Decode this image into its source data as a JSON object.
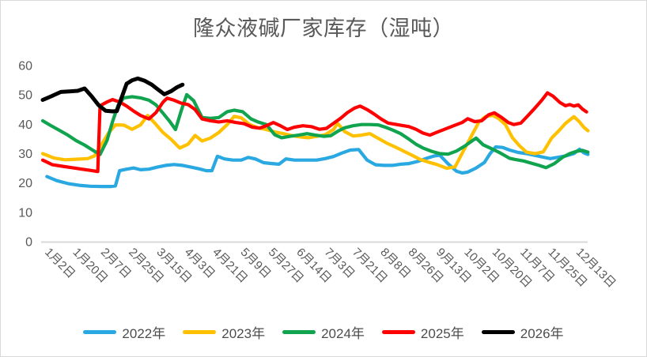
{
  "title": "隆众液碱厂家库存（湿吨）",
  "colors": {
    "background": "#ffffff",
    "border": "#d9d9d9",
    "axis_line": "#d8d8d8",
    "tick_text": "#595959",
    "legend_text": "#4d4d4d"
  },
  "chart_data": {
    "type": "line",
    "title": "隆众液碱厂家库存（湿吨）",
    "ylim": [
      0,
      60
    ],
    "y_ticks": [
      0,
      10,
      20,
      30,
      40,
      50,
      60
    ],
    "grid": false,
    "legend_position": "bottom",
    "x_note": "series x values are fractional positions on the category axis, 0 = first label, 19 = last label",
    "x_tick_labels": [
      "1月2日",
      "1月20日",
      "2月7日",
      "2月25日",
      "3月15日",
      "4月3日",
      "4月21日",
      "5月9日",
      "5月27日",
      "6月14日",
      "7月3日",
      "7月21日",
      "8月8日",
      "8月26日",
      "9月13日",
      "10月2日",
      "10月20日",
      "11月7日",
      "11月25日",
      "12月13日"
    ],
    "series": [
      {
        "name": "2022年",
        "color": "#29A8E1",
        "x": [
          0.15,
          0.5,
          0.9,
          1.3,
          1.7,
          2.1,
          2.45,
          2.6,
          2.75,
          3.0,
          3.25,
          3.5,
          3.8,
          4.1,
          4.4,
          4.7,
          5.0,
          5.3,
          5.6,
          5.85,
          6.05,
          6.25,
          6.5,
          6.8,
          7.1,
          7.35,
          7.6,
          7.9,
          8.2,
          8.45,
          8.7,
          9.0,
          9.4,
          9.8,
          10.1,
          10.4,
          10.7,
          11.0,
          11.3,
          11.6,
          11.9,
          12.2,
          12.5,
          12.8,
          13.1,
          13.4,
          13.7,
          14.0,
          14.2,
          14.5,
          14.8,
          15.0,
          15.2,
          15.5,
          15.8,
          16.0,
          16.2,
          16.45,
          16.7,
          17.0,
          17.3,
          17.6,
          17.9,
          18.15,
          18.4,
          18.7,
          19.0,
          19.2,
          19.35,
          19.5
        ],
        "y": [
          22.2,
          20.8,
          19.8,
          19.2,
          18.9,
          18.8,
          18.8,
          19.0,
          24.2,
          24.7,
          25.1,
          24.5,
          24.7,
          25.4,
          26.0,
          26.3,
          26.0,
          25.4,
          24.8,
          24.2,
          24.2,
          29.1,
          28.2,
          27.8,
          27.8,
          28.7,
          28.2,
          26.9,
          26.6,
          26.4,
          28.2,
          27.8,
          27.8,
          27.8,
          28.3,
          29.0,
          30.2,
          31.2,
          31.4,
          27.8,
          26.2,
          26.0,
          26.0,
          26.4,
          26.6,
          27.3,
          28.3,
          29.2,
          29.5,
          26.5,
          24.0,
          23.4,
          23.7,
          25.1,
          27.0,
          30.0,
          32.3,
          32.1,
          31.2,
          30.4,
          30.0,
          29.4,
          28.8,
          28.3,
          28.7,
          29.2,
          30.0,
          31.5,
          30.3,
          29.7
        ]
      },
      {
        "name": "2023年",
        "color": "#FFC000",
        "x": [
          0,
          0.4,
          0.8,
          1.2,
          1.6,
          1.85,
          2.1,
          2.35,
          2.6,
          2.9,
          3.2,
          3.5,
          3.75,
          4.0,
          4.3,
          4.6,
          4.9,
          5.2,
          5.45,
          5.7,
          6.0,
          6.3,
          6.6,
          6.85,
          7.1,
          7.4,
          7.7,
          8.0,
          8.3,
          8.6,
          8.9,
          9.2,
          9.5,
          9.8,
          10.1,
          10.4,
          10.55,
          10.8,
          11.1,
          11.4,
          11.7,
          12.0,
          12.3,
          12.6,
          12.9,
          13.2,
          13.5,
          13.8,
          14.1,
          14.45,
          14.75,
          15.05,
          15.35,
          15.6,
          15.85,
          16.1,
          16.3,
          16.55,
          16.8,
          17.05,
          17.3,
          17.6,
          17.9,
          18.2,
          18.45,
          18.7,
          19.0,
          19.2,
          19.35,
          19.5
        ],
        "y": [
          30.0,
          28.5,
          27.9,
          28.1,
          28.3,
          29.2,
          33.0,
          37.0,
          39.8,
          39.7,
          38.3,
          39.8,
          43.0,
          40.5,
          37.2,
          34.8,
          31.9,
          33.2,
          36.2,
          34.3,
          35.3,
          37.2,
          39.9,
          42.7,
          42.2,
          39.9,
          38.8,
          38.2,
          37.4,
          36.8,
          36.2,
          35.7,
          35.4,
          35.9,
          36.4,
          38.2,
          40.3,
          37.5,
          36.0,
          36.3,
          36.8,
          35.2,
          33.6,
          32.3,
          30.9,
          29.5,
          28.0,
          27.1,
          26.3,
          25.0,
          25.5,
          31.0,
          36.3,
          40.8,
          42.7,
          43.0,
          42.0,
          39.9,
          35.4,
          32.7,
          30.5,
          30.0,
          30.6,
          35.3,
          37.7,
          40.3,
          42.6,
          40.8,
          39.0,
          37.8
        ]
      },
      {
        "name": "2024年",
        "color": "#10A44F",
        "x": [
          0,
          0.3,
          0.6,
          0.9,
          1.2,
          1.5,
          1.8,
          2.05,
          2.3,
          2.5,
          2.7,
          2.9,
          3.2,
          3.5,
          3.8,
          4.05,
          4.3,
          4.55,
          4.75,
          4.95,
          5.15,
          5.4,
          5.7,
          6.0,
          6.3,
          6.6,
          6.85,
          7.15,
          7.45,
          7.7,
          8.0,
          8.3,
          8.55,
          8.85,
          9.15,
          9.45,
          9.75,
          10.05,
          10.3,
          10.55,
          10.8,
          11.1,
          11.4,
          11.7,
          12.0,
          12.25,
          12.5,
          12.8,
          13.1,
          13.35,
          13.6,
          13.9,
          14.2,
          14.5,
          14.8,
          15.1,
          15.35,
          15.5,
          15.75,
          16.05,
          16.35,
          16.7,
          16.9,
          17.2,
          17.45,
          17.75,
          18.0,
          18.3,
          18.6,
          18.85,
          19.1,
          19.3,
          19.5
        ],
        "y": [
          41.2,
          39.5,
          37.9,
          36.3,
          34.4,
          32.9,
          31.1,
          29.7,
          34.5,
          41.0,
          46.5,
          49.0,
          49.4,
          49.0,
          48.2,
          46.6,
          43.8,
          40.9,
          38.2,
          44.5,
          50.1,
          48.0,
          42.3,
          42.0,
          42.3,
          44.3,
          44.8,
          44.3,
          41.8,
          40.8,
          39.9,
          36.4,
          35.4,
          35.9,
          36.3,
          36.8,
          36.3,
          35.9,
          36.1,
          37.6,
          38.8,
          39.5,
          39.9,
          39.9,
          39.8,
          39.0,
          38.1,
          36.8,
          34.9,
          33.2,
          31.9,
          30.8,
          30.0,
          29.8,
          30.9,
          32.6,
          34.3,
          35.3,
          33.0,
          31.7,
          30.3,
          28.4,
          28.0,
          27.5,
          26.8,
          26.0,
          25.2,
          26.6,
          28.8,
          30.0,
          30.8,
          31.1,
          30.5
        ]
      },
      {
        "name": "2025年",
        "color": "#FF0000",
        "x": [
          0,
          0.35,
          0.7,
          1.05,
          1.4,
          1.7,
          1.97,
          2.05,
          2.3,
          2.5,
          2.75,
          3.0,
          3.25,
          3.5,
          3.8,
          4.05,
          4.3,
          4.45,
          4.7,
          4.95,
          5.2,
          5.45,
          5.7,
          6.0,
          6.3,
          6.6,
          6.9,
          7.2,
          7.5,
          7.75,
          8.0,
          8.25,
          8.5,
          8.75,
          9.0,
          9.3,
          9.6,
          9.9,
          10.15,
          10.4,
          10.65,
          10.9,
          11.15,
          11.35,
          11.6,
          11.85,
          12.1,
          12.35,
          12.6,
          12.85,
          13.1,
          13.35,
          13.6,
          13.85,
          14.1,
          14.4,
          14.7,
          15.0,
          15.2,
          15.45,
          15.7,
          15.95,
          16.15,
          16.4,
          16.65,
          16.85,
          17.1,
          17.35,
          17.6,
          17.85,
          18.05,
          18.25,
          18.5,
          18.7,
          18.85,
          19.0,
          19.15,
          19.3,
          19.45
        ],
        "y": [
          27.8,
          26.2,
          25.7,
          25.2,
          24.7,
          24.3,
          23.9,
          46.3,
          47.6,
          48.4,
          47.6,
          46.2,
          44.5,
          43.0,
          41.8,
          44.0,
          47.5,
          48.9,
          48.2,
          47.2,
          46.7,
          45.0,
          41.8,
          41.2,
          40.8,
          41.2,
          40.6,
          40.2,
          39.0,
          38.7,
          39.5,
          40.6,
          39.5,
          38.2,
          39.0,
          39.5,
          39.2,
          38.3,
          38.6,
          40.3,
          42.0,
          44.0,
          45.5,
          46.2,
          45.0,
          43.5,
          41.8,
          40.4,
          40.0,
          39.6,
          39.2,
          38.3,
          37.0,
          36.3,
          37.3,
          38.4,
          39.5,
          40.6,
          41.9,
          40.9,
          41.2,
          43.2,
          43.9,
          42.4,
          40.6,
          39.9,
          40.4,
          42.9,
          45.5,
          48.2,
          50.7,
          49.6,
          47.4,
          46.3,
          46.7,
          46.2,
          46.6,
          45.2,
          44.2
        ]
      },
      {
        "name": "2026年",
        "color": "#000000",
        "x": [
          0,
          0.3,
          0.65,
          0.95,
          1.25,
          1.5,
          1.75,
          2.0,
          2.25,
          2.5,
          2.65,
          2.8,
          3.0,
          3.2,
          3.4,
          3.65,
          3.9,
          4.1,
          4.35,
          4.6,
          4.8,
          5.0
        ],
        "y": [
          48.3,
          49.5,
          51.0,
          51.2,
          51.4,
          52.2,
          49.5,
          46.5,
          44.6,
          44.4,
          44.5,
          48.5,
          53.8,
          55.0,
          55.6,
          54.8,
          53.5,
          52.0,
          50.2,
          51.3,
          52.6,
          53.5
        ]
      }
    ]
  }
}
